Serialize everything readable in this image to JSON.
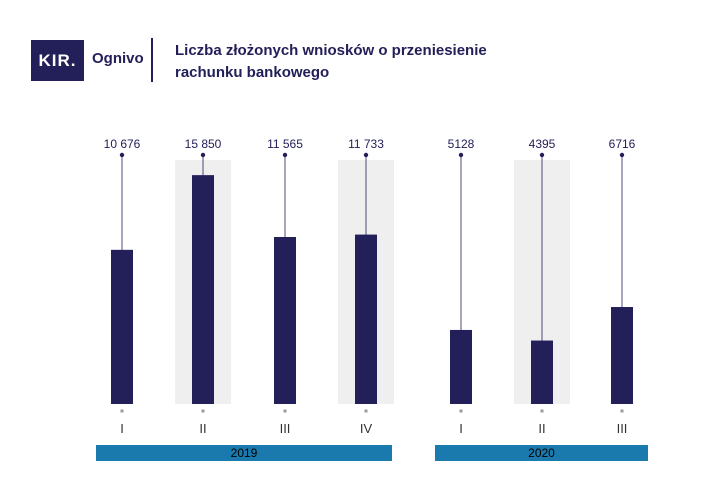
{
  "brand": {
    "logo_text": "KIR.",
    "name": "Ognivo"
  },
  "colors": {
    "bar": "#232059",
    "band": "#1a7aae",
    "highlight": "#efefef",
    "text": "#232059"
  },
  "chart_data": {
    "type": "bar",
    "title": "Liczba złożonych wniosków o przeniesienie rachunku bankowego",
    "title_lines": [
      "Liczba złożonych wniosków o przeniesienie",
      "rachunku bankowego"
    ],
    "xlabel": "",
    "ylabel": "",
    "categories": [
      "I",
      "II",
      "III",
      "IV",
      "I",
      "II",
      "III"
    ],
    "values": [
      10676,
      15850,
      11565,
      11733,
      5128,
      4395,
      6716
    ],
    "value_labels": [
      "10 676",
      "15 850",
      "11 565",
      "11 733",
      "5128",
      "4395",
      "6716"
    ],
    "groups": [
      {
        "label": "2019",
        "start": 0,
        "end": 3
      },
      {
        "label": "2020",
        "start": 4,
        "end": 6
      }
    ],
    "highlighted": [
      1,
      3,
      5
    ],
    "grid": false,
    "legend": "none"
  }
}
